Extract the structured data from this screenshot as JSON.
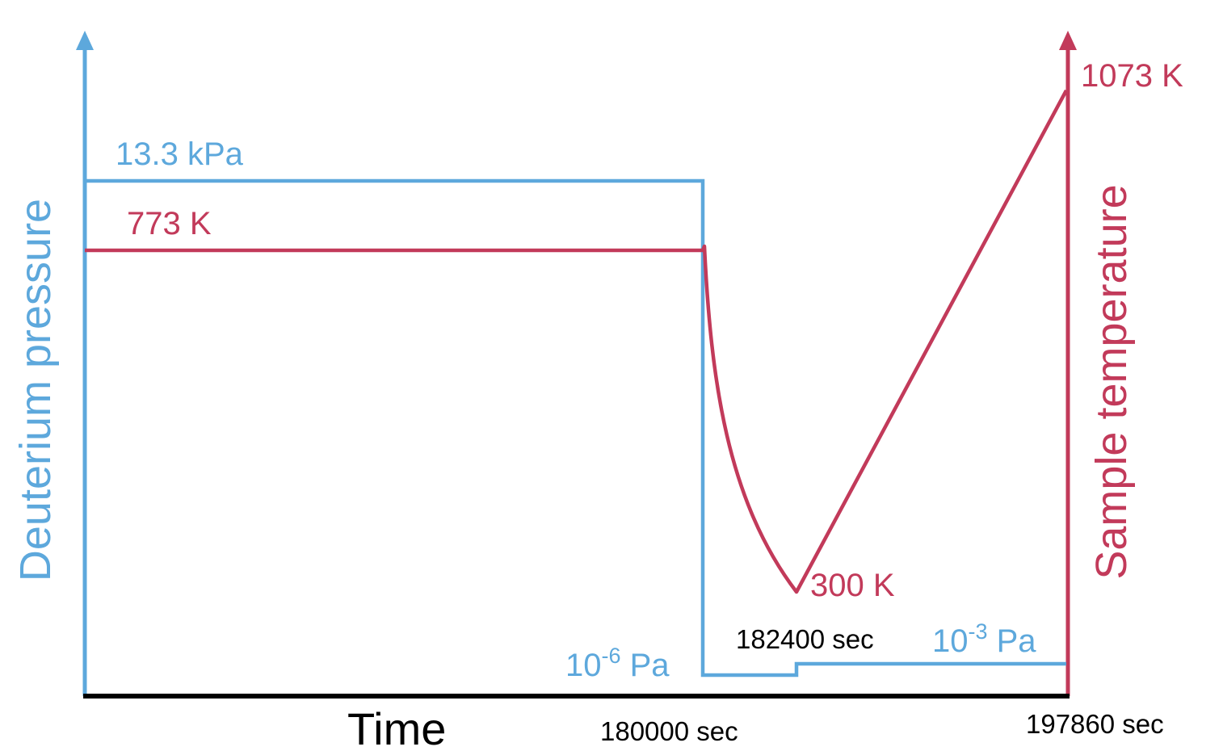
{
  "colors": {
    "pressure": "#5DA8DC",
    "temperature": "#C23A5A",
    "axis": "#000000"
  },
  "labels": {
    "x_axis": "Time",
    "left_axis": "Deuterium pressure",
    "right_axis": "Sample temperature"
  },
  "pressure_labels": {
    "high": "13.3 kPa",
    "low_base": "10",
    "low_exp": "-6",
    "low_unit": " Pa",
    "mid_base": "10",
    "mid_exp": "-3",
    "mid_unit": " Pa"
  },
  "temperature_labels": {
    "hold": "773 K",
    "min": "300 K",
    "max": "1073 K"
  },
  "time_labels": {
    "t1": "180000 sec",
    "t2": "182400 sec",
    "t3": "197860 sec"
  }
}
